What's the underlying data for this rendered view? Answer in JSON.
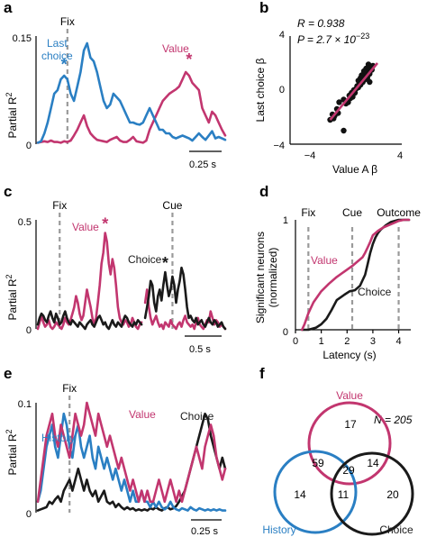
{
  "colors": {
    "value": "#c2366f",
    "choice": "#1a1a1a",
    "history": "#2a7fc3",
    "marker": "#9a9a9a"
  },
  "chart_data": [
    {
      "panel": "a",
      "type": "line",
      "ylabel": "Partial R2",
      "ylabel_main": "Partial R",
      "ylabel_sup": "2",
      "ylim": [
        0,
        0.15
      ],
      "yticks": [
        "0",
        "0.15"
      ],
      "scalebar": "0.25 s",
      "markers": [
        {
          "label": "Fix",
          "x": 9
        }
      ],
      "annotations": [
        {
          "text": "Last",
          "series": "history"
        },
        {
          "text": "choice",
          "series": "history"
        },
        {
          "text": "Value",
          "series": "value"
        }
      ],
      "stars": [
        {
          "series": "history",
          "x": 8,
          "y": 0.098
        },
        {
          "series": "value",
          "x": 46,
          "y": 0.105
        }
      ],
      "xlim": [
        0,
        57
      ],
      "series": [
        {
          "name": "Last choice",
          "color_key": "history",
          "values": [
            0.002,
            0.004,
            0.015,
            0.03,
            0.05,
            0.07,
            0.075,
            0.09,
            0.095,
            0.09,
            0.07,
            0.06,
            0.08,
            0.1,
            0.13,
            0.14,
            0.12,
            0.115,
            0.1,
            0.08,
            0.06,
            0.05,
            0.055,
            0.07,
            0.065,
            0.06,
            0.05,
            0.04,
            0.03,
            0.03,
            0.028,
            0.027,
            0.03,
            0.04,
            0.05,
            0.04,
            0.03,
            0.02,
            0.02,
            0.015,
            0.015,
            0.01,
            0.008,
            0.01,
            0.012,
            0.01,
            0.008,
            0.005,
            0.01,
            0.015,
            0.01,
            0.006,
            0.012,
            0.018,
            0.008,
            0.01,
            0.008,
            0.006
          ]
        },
        {
          "name": "Value",
          "color_key": "value",
          "values": [
            0.002,
            0.003,
            0.004,
            0.003,
            0.005,
            0.003,
            0.003,
            0.002,
            0.004,
            0.003,
            0.005,
            0.012,
            0.02,
            0.03,
            0.04,
            0.025,
            0.015,
            0.01,
            0.006,
            0.005,
            0.004,
            0.003,
            0.006,
            0.008,
            0.01,
            0.005,
            0.003,
            0.003,
            0.006,
            0.01,
            0.004,
            0.003,
            0.002,
            0.005,
            0.02,
            0.03,
            0.04,
            0.05,
            0.06,
            0.065,
            0.07,
            0.073,
            0.076,
            0.08,
            0.09,
            0.1,
            0.095,
            0.085,
            0.08,
            0.075,
            0.05,
            0.04,
            0.03,
            0.045,
            0.04,
            0.03,
            0.02,
            0.012
          ]
        }
      ]
    },
    {
      "panel": "b",
      "type": "scatter",
      "xlabel": "Value A β",
      "ylabel": "Last choice β",
      "xlim": [
        -4,
        4
      ],
      "ylim": [
        -4,
        4
      ],
      "xticks": [
        "−4",
        "4"
      ],
      "yticks": [
        "−4",
        "0",
        "4"
      ],
      "R_text": "R = 0.938",
      "P_text": "P = 2.7 × 10",
      "P_exp": "−23",
      "fit": {
        "slope": 1.0,
        "intercept": 0.0,
        "x_range": [
          -2.2,
          2.0
        ]
      },
      "points": [
        [
          -1.0,
          -0.7
        ],
        [
          -0.8,
          -1.0
        ],
        [
          -0.6,
          -0.9
        ],
        [
          -0.5,
          -0.4
        ],
        [
          -0.4,
          -0.6
        ],
        [
          -0.3,
          -0.2
        ],
        [
          -0.2,
          -0.5
        ],
        [
          -0.1,
          0.0
        ],
        [
          0.0,
          -0.2
        ],
        [
          0.1,
          0.1
        ],
        [
          0.2,
          0.3
        ],
        [
          0.3,
          0.2
        ],
        [
          0.4,
          0.5
        ],
        [
          0.5,
          0.4
        ],
        [
          0.6,
          0.8
        ],
        [
          0.7,
          0.6
        ],
        [
          0.8,
          1.0
        ],
        [
          0.9,
          0.8
        ],
        [
          1.0,
          1.2
        ],
        [
          1.1,
          0.9
        ],
        [
          1.2,
          1.4
        ],
        [
          1.3,
          1.2
        ],
        [
          1.4,
          1.6
        ],
        [
          1.5,
          1.5
        ],
        [
          1.0,
          1.6
        ],
        [
          0.8,
          1.4
        ],
        [
          1.2,
          1.9
        ],
        [
          0.5,
          0.9
        ],
        [
          0.3,
          0.7
        ],
        [
          1.6,
          1.8
        ],
        [
          -1.6,
          -1.4
        ],
        [
          -2.0,
          -1.8
        ],
        [
          -1.8,
          -1.9
        ],
        [
          -1.4,
          -0.9
        ],
        [
          -1.9,
          -2.1
        ],
        [
          -1.5,
          -1.7
        ],
        [
          -2.2,
          -2.2
        ],
        [
          0.6,
          1.1
        ],
        [
          1.3,
          0.6
        ],
        [
          -1.0,
          -3.0
        ]
      ]
    },
    {
      "panel": "c",
      "type": "line",
      "ylabel": "Partial R2",
      "ylabel_main": "Partial R",
      "ylabel_sup": "2",
      "ylim": [
        0,
        0.5
      ],
      "yticks": [
        "0",
        "0.5"
      ],
      "scalebar": "0.5 s",
      "markers": [
        {
          "label": "Fix",
          "x": 12
        },
        {
          "label": "Cue",
          "x": 74
        }
      ],
      "annotations": [
        {
          "text": "Value",
          "series": "value"
        },
        {
          "text": "Choice",
          "series": "choice"
        }
      ],
      "stars": [
        {
          "series": "value",
          "x": 37,
          "y": 0.44
        },
        {
          "series": "choice",
          "x": 70,
          "y": 0.26
        }
      ],
      "xlim": [
        0,
        103
      ],
      "series": [
        {
          "name": "Value",
          "color_key": "value",
          "values": [
            0.0,
            0.03,
            0.06,
            0.03,
            0.01,
            0.02,
            0.04,
            0.01,
            0.0,
            0.01,
            0.03,
            0.02,
            0.01,
            0.0,
            0.02,
            0.05,
            0.03,
            0.02,
            0.04,
            0.07,
            0.1,
            0.15,
            0.12,
            0.07,
            0.04,
            0.06,
            0.12,
            0.18,
            0.14,
            0.1,
            0.05,
            0.02,
            0.05,
            0.12,
            0.2,
            0.3,
            0.35,
            0.44,
            0.4,
            0.3,
            0.25,
            0.32,
            0.28,
            0.2,
            0.1,
            0.05,
            0.03,
            0.02,
            0.04,
            0.03,
            0.01,
            0.02,
            0.05,
            0.03,
            0.01,
            0.0,
            0.02,
            0.03,
            null,
            0.12,
            0.18,
            0.1,
            0.05,
            0.02,
            0.04,
            0.06,
            0.03,
            0.01,
            0.02,
            0.0,
            0.03,
            0.02,
            0.01,
            0.04,
            0.02,
            0.01,
            0.0,
            0.02,
            0.03,
            0.01,
            0.04,
            0.06,
            0.03,
            0.02,
            0.01,
            0.02,
            0.0,
            0.03,
            0.05,
            0.02,
            0.01,
            0.0,
            0.02,
            0.04,
            0.03,
            0.08,
            0.05,
            0.02,
            0.04,
            0.03,
            0.01,
            0.02,
            0.01,
            0.0
          ]
        },
        {
          "name": "Choice",
          "color_key": "choice",
          "values": [
            0.02,
            0.05,
            0.07,
            0.06,
            0.04,
            0.03,
            0.06,
            0.08,
            0.05,
            0.03,
            0.07,
            0.05,
            0.02,
            0.03,
            0.06,
            0.08,
            0.05,
            0.03,
            0.02,
            0.04,
            0.03,
            0.02,
            0.01,
            0.03,
            0.02,
            0.01,
            0.0,
            0.02,
            0.03,
            0.04,
            0.02,
            0.01,
            0.03,
            0.05,
            0.06,
            0.04,
            0.02,
            0.03,
            0.01,
            0.0,
            0.02,
            0.04,
            0.02,
            0.01,
            0.03,
            0.02,
            0.01,
            0.04,
            0.06,
            0.05,
            0.03,
            0.02,
            0.01,
            0.03,
            0.02,
            0.04,
            0.03,
            0.02,
            null,
            0.05,
            0.1,
            0.15,
            0.22,
            0.2,
            0.12,
            0.08,
            0.15,
            0.18,
            0.13,
            0.2,
            0.26,
            0.2,
            0.15,
            0.18,
            0.24,
            0.2,
            0.12,
            0.18,
            0.22,
            0.28,
            0.25,
            0.18,
            0.1,
            0.05,
            0.06,
            0.04,
            0.03,
            0.05,
            0.02,
            0.03,
            0.04,
            0.02,
            0.01,
            0.03,
            0.05,
            0.03,
            0.02,
            0.04,
            0.03,
            0.01,
            0.02,
            0.03,
            0.01,
            0.0
          ]
        }
      ]
    },
    {
      "panel": "d",
      "type": "line",
      "ylabel": "Significant neurons (normalized)",
      "ylabel_line1": "Significant neurons",
      "ylabel_line2": "(normalized)",
      "xlabel": "Latency (s)",
      "xlim": [
        0,
        4.4
      ],
      "ylim": [
        0,
        1
      ],
      "xticks": [
        0,
        1,
        2,
        3,
        4
      ],
      "yticks": [
        "0",
        "1"
      ],
      "markers": [
        {
          "label": "Fix",
          "x": 0.5
        },
        {
          "label": "Cue",
          "x": 2.2
        },
        {
          "label": "Outcome",
          "x": 4.0
        }
      ],
      "annotations": [
        {
          "text": "Value",
          "series": "value"
        },
        {
          "text": "Choice",
          "series": "choice"
        }
      ],
      "series": [
        {
          "name": "Value",
          "color_key": "value",
          "x": [
            0.25,
            0.35,
            0.5,
            0.7,
            1.0,
            1.3,
            1.6,
            1.9,
            2.2,
            2.4,
            2.6,
            2.7,
            2.8,
            2.9,
            3.0,
            3.2,
            3.4,
            3.6,
            3.8,
            4.0,
            4.2,
            4.4
          ],
          "values": [
            0.0,
            0.05,
            0.15,
            0.25,
            0.35,
            0.42,
            0.48,
            0.53,
            0.58,
            0.62,
            0.66,
            0.7,
            0.75,
            0.8,
            0.86,
            0.9,
            0.93,
            0.95,
            0.97,
            0.99,
            1.0,
            1.0
          ]
        },
        {
          "name": "Choice",
          "color_key": "choice",
          "x": [
            0.25,
            0.5,
            0.8,
            1.0,
            1.2,
            1.4,
            1.6,
            1.9,
            2.1,
            2.3,
            2.5,
            2.7,
            2.8,
            2.9,
            3.0,
            3.1,
            3.2,
            3.3,
            3.5,
            3.7,
            4.0,
            4.2,
            4.4
          ],
          "values": [
            0.0,
            0.0,
            0.02,
            0.05,
            0.1,
            0.18,
            0.27,
            0.32,
            0.35,
            0.36,
            0.4,
            0.5,
            0.6,
            0.7,
            0.78,
            0.84,
            0.88,
            0.91,
            0.95,
            0.98,
            1.0,
            1.0,
            1.0
          ]
        }
      ]
    },
    {
      "panel": "e",
      "type": "line",
      "ylabel": "Partial R2",
      "ylabel_main": "Partial R",
      "ylabel_sup": "2",
      "ylim": [
        0,
        0.1
      ],
      "yticks": [
        "0",
        "0.1"
      ],
      "scalebar": "0.25 s",
      "markers": [
        {
          "label": "Fix",
          "x": 11
        }
      ],
      "annotations": [
        {
          "text": "History",
          "series": "history"
        },
        {
          "text": "Value",
          "series": "value"
        },
        {
          "text": "Choice",
          "series": "choice"
        }
      ],
      "xlim": [
        0,
        65
      ],
      "series": [
        {
          "name": "History",
          "color_key": "history",
          "values": [
            0.01,
            0.02,
            0.04,
            0.06,
            0.07,
            0.08,
            0.06,
            0.05,
            0.07,
            0.09,
            0.08,
            0.06,
            0.05,
            0.07,
            0.08,
            0.06,
            0.05,
            0.06,
            0.07,
            0.05,
            0.04,
            0.06,
            0.05,
            0.04,
            0.05,
            0.04,
            0.03,
            0.04,
            0.03,
            0.02,
            0.03,
            0.02,
            0.01,
            0.02,
            0.01,
            0.01,
            0.02,
            0.01,
            0.01,
            0.005,
            0.01,
            0.005,
            0.01,
            0.005,
            0.003,
            0.005,
            0.01,
            0.005,
            0.003,
            0.002,
            0.004,
            0.003,
            0.002,
            0.005,
            0.003,
            0.002,
            0.004,
            0.003,
            0.002,
            0.003,
            0.002,
            0.003,
            0.002,
            0.003,
            0.002,
            0.002
          ]
        },
        {
          "name": "Value",
          "color_key": "value",
          "values": [
            0.01,
            0.03,
            0.05,
            0.07,
            0.08,
            0.09,
            0.07,
            0.06,
            0.08,
            0.07,
            0.06,
            0.05,
            0.07,
            0.09,
            0.08,
            0.07,
            0.08,
            0.1,
            0.09,
            0.08,
            0.07,
            0.09,
            0.08,
            0.07,
            0.06,
            0.07,
            0.06,
            0.05,
            0.04,
            0.05,
            0.04,
            0.03,
            0.02,
            0.03,
            0.02,
            0.01,
            0.02,
            0.01,
            0.02,
            0.01,
            0.01,
            0.02,
            0.03,
            0.02,
            0.01,
            0.02,
            0.03,
            0.02,
            0.01,
            0.02,
            0.01,
            0.02,
            0.03,
            0.04,
            0.05,
            0.06,
            0.05,
            0.04,
            0.06,
            0.07,
            0.08,
            0.07,
            0.05,
            0.04,
            0.03,
            0.04
          ]
        },
        {
          "name": "Choice",
          "color_key": "choice",
          "values": [
            0.002,
            0.003,
            0.004,
            0.005,
            0.01,
            0.008,
            0.012,
            0.015,
            0.01,
            0.02,
            0.025,
            0.03,
            0.02,
            0.03,
            0.04,
            0.03,
            0.02,
            0.03,
            0.02,
            0.015,
            0.02,
            0.01,
            0.015,
            0.02,
            0.01,
            0.008,
            0.01,
            0.005,
            0.008,
            0.005,
            0.003,
            0.005,
            0.003,
            0.004,
            0.002,
            0.003,
            0.002,
            0.003,
            0.002,
            0.004,
            0.003,
            0.005,
            0.003,
            0.002,
            0.004,
            0.005,
            0.003,
            0.004,
            0.006,
            0.01,
            0.015,
            0.02,
            0.03,
            0.04,
            0.05,
            0.06,
            0.07,
            0.08,
            0.09,
            0.085,
            0.07,
            0.06,
            0.05,
            0.04,
            0.05,
            0.04
          ]
        }
      ]
    },
    {
      "panel": "f",
      "type": "venn",
      "n_label": "N = 205",
      "sets": [
        {
          "name": "Value",
          "color_key": "value"
        },
        {
          "name": "History",
          "color_key": "history"
        },
        {
          "name": "Choice",
          "color_key": "choice"
        }
      ],
      "regions": {
        "value_only": 17,
        "history_only": 14,
        "choice_only": 20,
        "value_history": 59,
        "value_choice": 14,
        "history_choice": 11,
        "all": 29
      }
    }
  ]
}
